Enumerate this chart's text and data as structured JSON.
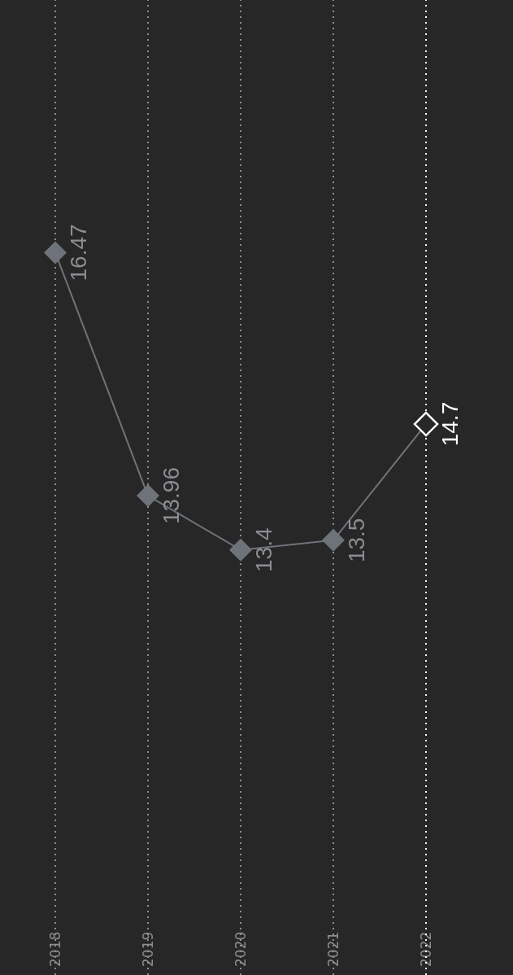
{
  "chart_data": {
    "type": "line",
    "categories": [
      "2018",
      "2019",
      "2020",
      "2021",
      "2022"
    ],
    "series": [
      {
        "color": "#6e737a",
        "colors": [
          "#6e737a",
          "#6e737a",
          "#6e737a",
          "#6e737a",
          "#ffffff"
        ],
        "values": [
          16.47,
          13.96,
          13.4,
          13.5,
          14.7
        ]
      }
    ],
    "data_labels": true,
    "ref_lines": [
      {
        "axis": "x",
        "value": "2022",
        "color": "#ffffff",
        "line_style": "dotted"
      }
    ],
    "grid": "x",
    "marker": "diamond",
    "line_style": "solid"
  }
}
